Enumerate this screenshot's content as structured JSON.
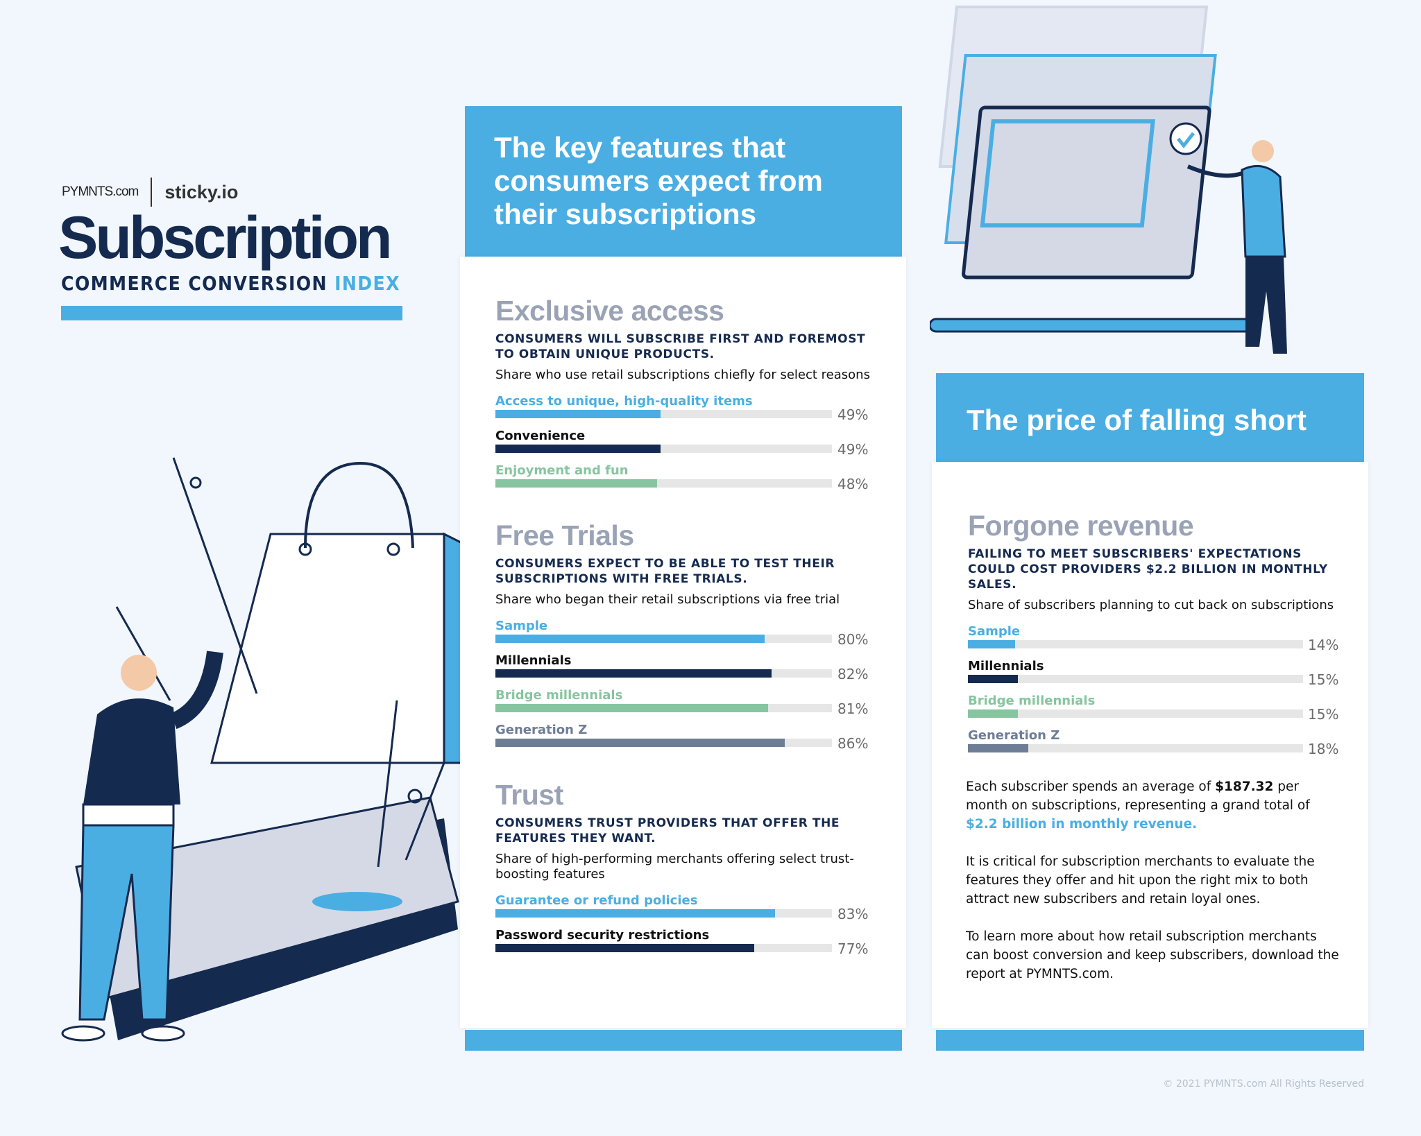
{
  "brand": {
    "pymnts": "PYMNTS.com",
    "sticky": "sticky.io",
    "title": "Subscription",
    "subtitle_main": "COMMERCE CONVERSION",
    "subtitle_accent": "INDEX"
  },
  "colors": {
    "blue": "#4aaee3",
    "navy": "#152a4f",
    "green": "#86c59f",
    "gray": "#6e7d96",
    "track": "#e6e6e6"
  },
  "middle": {
    "header": "The key features that consumers expect from their subscriptions",
    "sections": [
      {
        "title": "Exclusive access",
        "caption": "CONSUMERS WILL SUBSCRIBE FIRST AND FOREMOST TO OBTAIN UNIQUE PRODUCTS.",
        "desc": "Share who use retail subscriptions chiefly for select reasons",
        "bars": [
          {
            "label": "Access to unique, high-quality items",
            "value": 49,
            "pct": "49%",
            "color": "blue"
          },
          {
            "label": "Convenience",
            "value": 49,
            "pct": "49%",
            "color": "navy"
          },
          {
            "label": "Enjoyment and fun",
            "value": 48,
            "pct": "48%",
            "color": "green"
          }
        ]
      },
      {
        "title": "Free Trials",
        "caption": "CONSUMERS EXPECT TO BE ABLE TO TEST THEIR SUBSCRIPTIONS WITH FREE TRIALS.",
        "desc": "Share who began their retail subscriptions via free trial",
        "bars": [
          {
            "label": "Sample",
            "value": 80,
            "pct": "80%",
            "color": "blue"
          },
          {
            "label": "Millennials",
            "value": 82,
            "pct": "82%",
            "color": "navy"
          },
          {
            "label": "Bridge millennials",
            "value": 81,
            "pct": "81%",
            "color": "green"
          },
          {
            "label": "Generation Z",
            "value": 86,
            "pct": "86%",
            "color": "gray"
          }
        ]
      },
      {
        "title": "Trust",
        "caption": "CONSUMERS TRUST PROVIDERS THAT OFFER THE FEATURES THEY WANT.",
        "desc": "Share of high-performing merchants offering select trust-boosting features",
        "bars": [
          {
            "label": "Guarantee or refund policies",
            "value": 83,
            "pct": "83%",
            "color": "blue"
          },
          {
            "label": "Password security restrictions",
            "value": 77,
            "pct": "77%",
            "color": "navy"
          }
        ]
      }
    ]
  },
  "right": {
    "header": "The price of falling short",
    "section": {
      "title": "Forgone revenue",
      "caption": "FAILING TO MEET SUBSCRIBERS' EXPECTATIONS COULD COST PROVIDERS $2.2 BILLION IN MONTHLY SALES.",
      "desc": "Share of subscribers planning to cut back on subscriptions",
      "bars": [
        {
          "label": "Sample",
          "value": 14,
          "pct": "14%",
          "color": "blue"
        },
        {
          "label": "Millennials",
          "value": 15,
          "pct": "15%",
          "color": "navy"
        },
        {
          "label": "Bridge millennials",
          "value": 15,
          "pct": "15%",
          "color": "green"
        },
        {
          "label": "Generation Z",
          "value": 18,
          "pct": "18%",
          "color": "gray"
        }
      ]
    },
    "p1_a": "Each subscriber spends an average of ",
    "p1_b": "$187.32",
    "p1_c": " per month on subscriptions, representing a grand total of ",
    "p1_d": "$2.2 billion in monthly revenue.",
    "p2": "It is critical for subscription merchants to evaluate the features they offer and hit upon the right mix to both attract new subscribers and retain loyal ones.",
    "p3": "To learn more about how retail subscription merchants can boost conversion and keep subscribers, download the report at PYMNTS.com."
  },
  "footer": {
    "copyright": "© 2021 PYMNTS.com All Rights Reserved"
  }
}
